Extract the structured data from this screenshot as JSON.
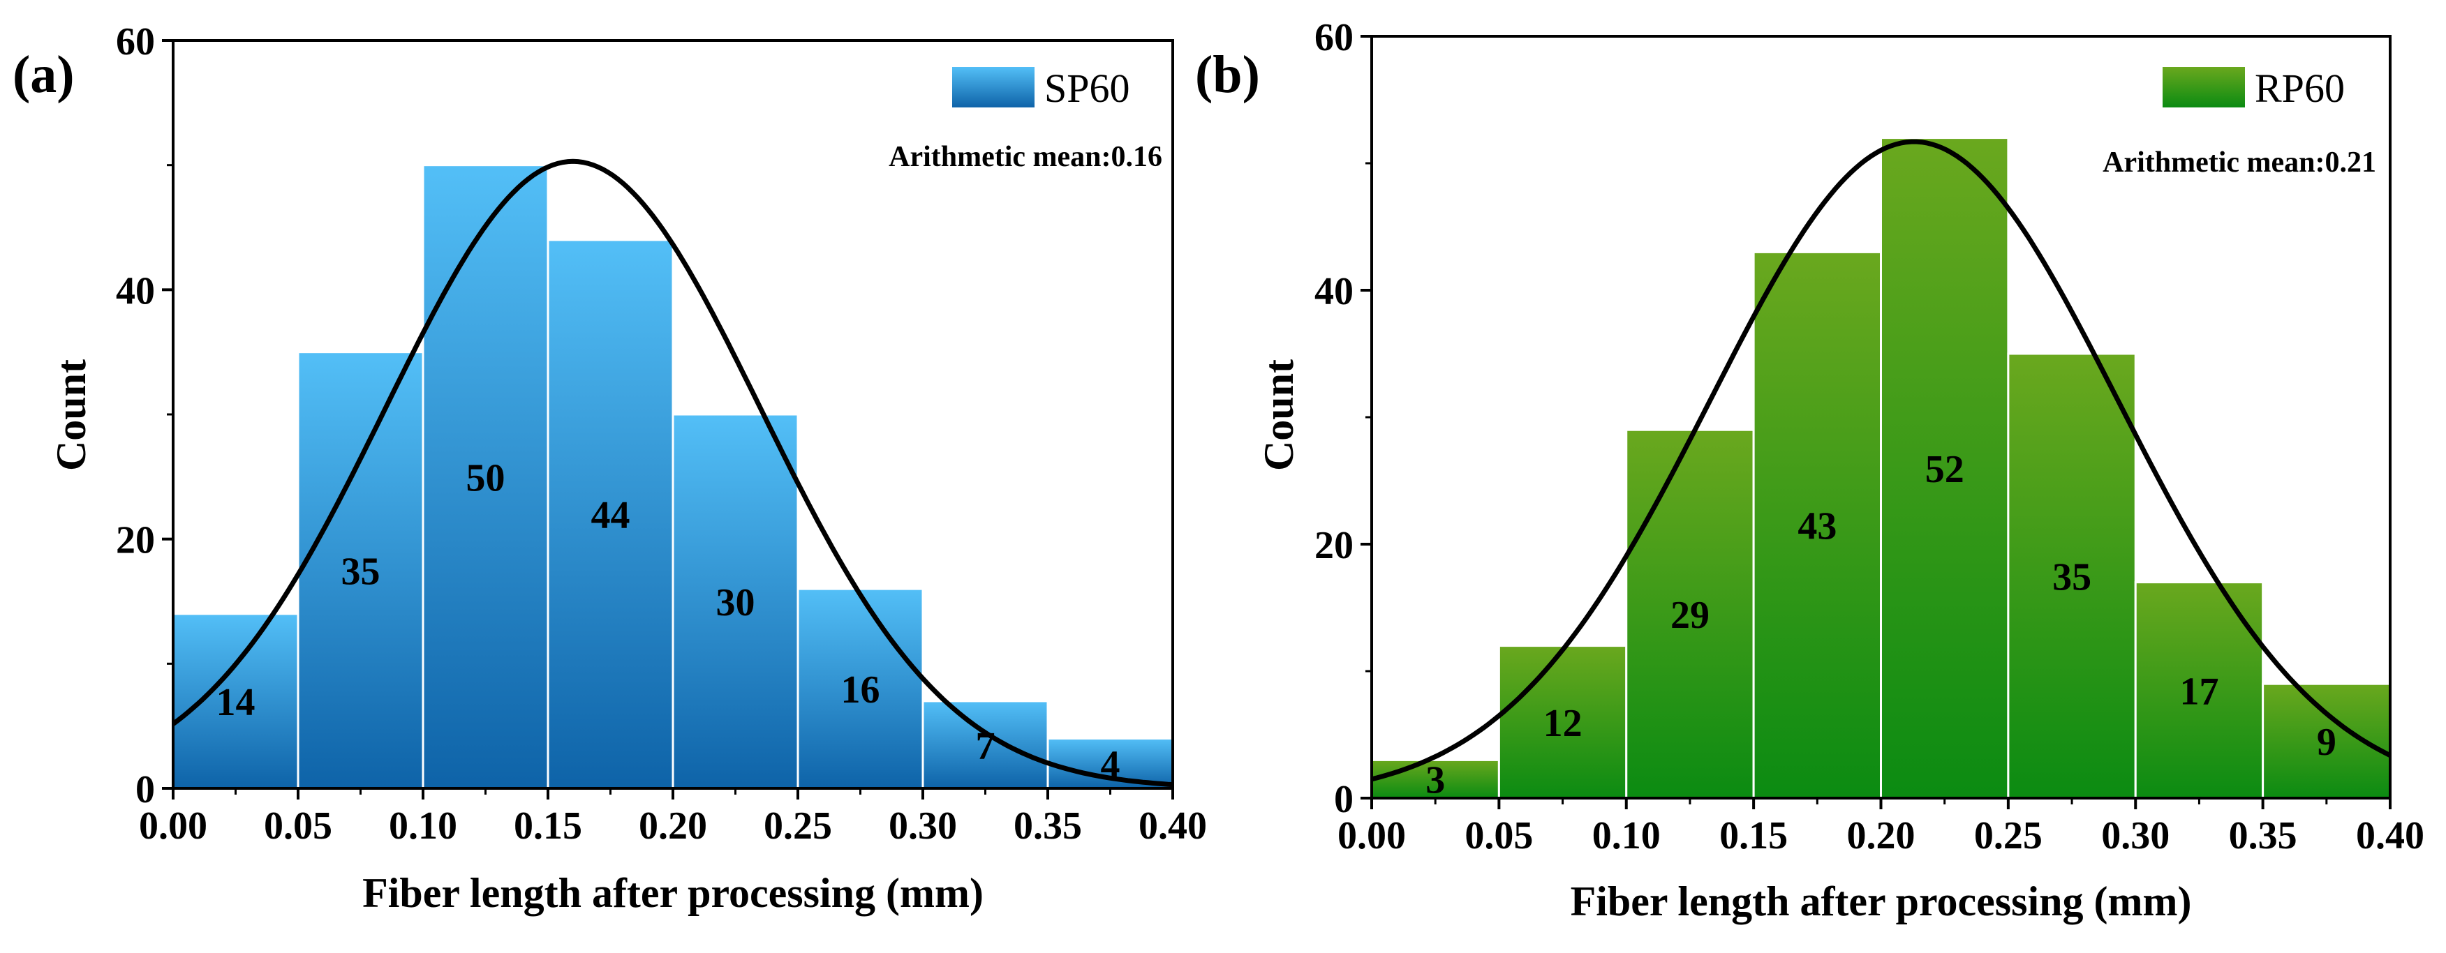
{
  "chart_data": [
    {
      "type": "bar",
      "panel_label": "(a)",
      "legend": "SP60",
      "annotation": "Arithmetic mean:0.16",
      "xlabel": "Fiber length after processing (mm)",
      "ylabel": "Count",
      "xlim": [
        0,
        0.4
      ],
      "ylim": [
        0,
        60
      ],
      "xticks": [
        "0.00",
        "0.05",
        "0.10",
        "0.15",
        "0.20",
        "0.25",
        "0.30",
        "0.35",
        "0.40"
      ],
      "yticks": [
        "0",
        "20",
        "40",
        "60"
      ],
      "bin_edges": [
        0,
        0.05,
        0.1,
        0.15,
        0.2,
        0.25,
        0.3,
        0.35,
        0.4
      ],
      "values": [
        14,
        35,
        50,
        44,
        30,
        16,
        7,
        4
      ],
      "value_labels": [
        "14",
        "35",
        "50",
        "44",
        "30",
        "16",
        "7",
        "4"
      ],
      "fit_curve": {
        "type": "normal",
        "mean": 0.16,
        "sd": 0.075,
        "peak": 50.3
      },
      "colors": {
        "top": "#53bff7",
        "bottom": "#0e63a8",
        "curve": "#000000"
      }
    },
    {
      "type": "bar",
      "panel_label": "(b)",
      "legend": "RP60",
      "annotation": "Arithmetic mean:0.21",
      "xlabel": "Fiber length after processing (mm)",
      "ylabel": "Count",
      "xlim": [
        0,
        0.4
      ],
      "ylim": [
        0,
        60
      ],
      "xticks": [
        "0.00",
        "0.05",
        "0.10",
        "0.15",
        "0.20",
        "0.25",
        "0.30",
        "0.35",
        "0.40"
      ],
      "yticks": [
        "0",
        "20",
        "40",
        "60"
      ],
      "bin_edges": [
        0,
        0.05,
        0.1,
        0.15,
        0.2,
        0.25,
        0.3,
        0.35,
        0.4
      ],
      "values": [
        3,
        12,
        29,
        43,
        52,
        35,
        17,
        9
      ],
      "value_labels": [
        "3",
        "12",
        "29",
        "43",
        "52",
        "35",
        "17",
        "9"
      ],
      "fit_curve": {
        "type": "normal",
        "mean": 0.213,
        "sd": 0.08,
        "peak": 51.7
      },
      "colors": {
        "top": "#6aa81e",
        "bottom": "#0b8b12",
        "curve": "#000000"
      }
    }
  ]
}
